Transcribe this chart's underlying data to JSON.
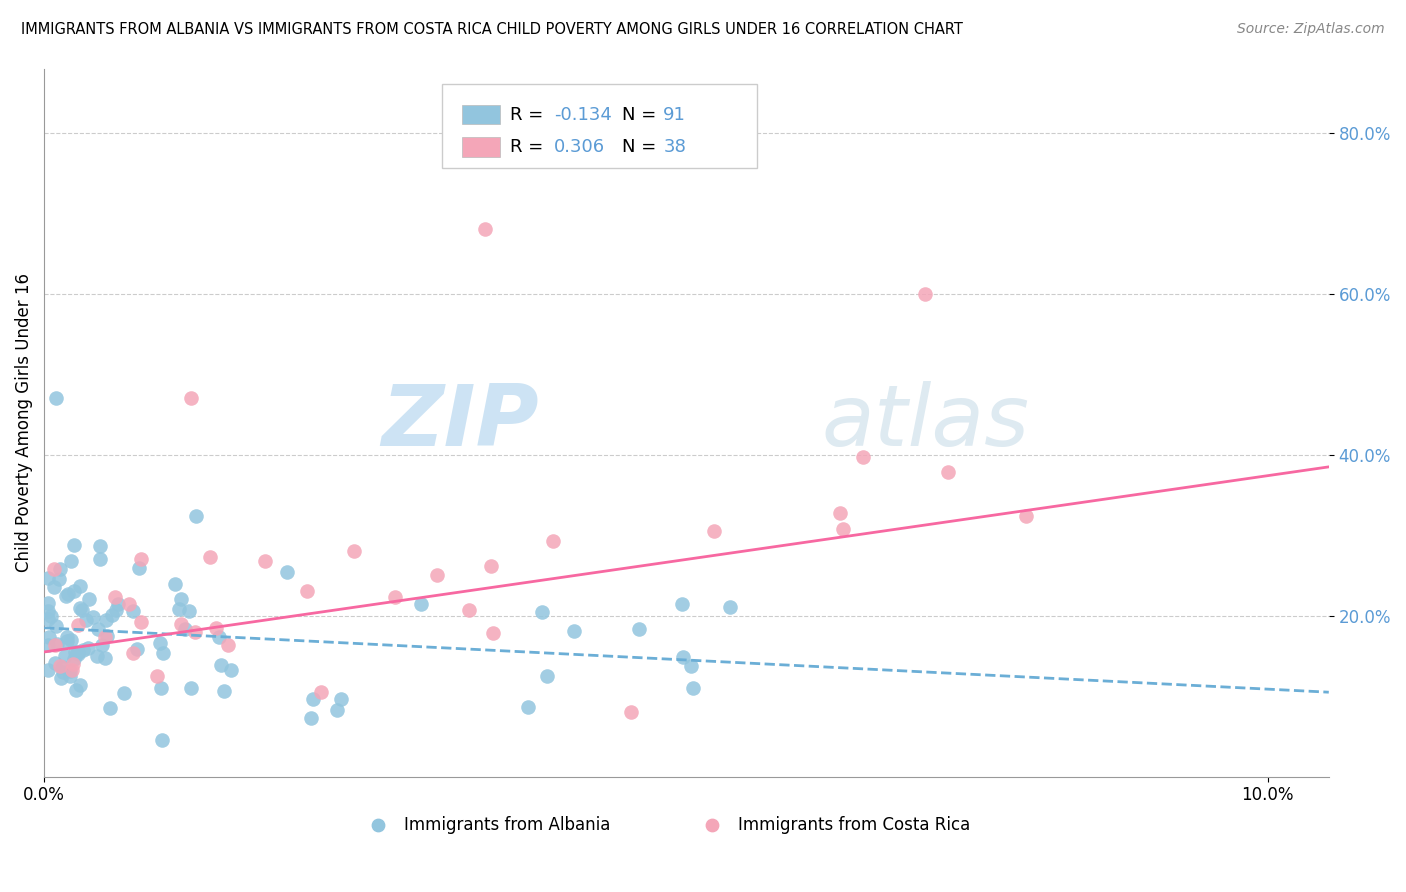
{
  "title": "IMMIGRANTS FROM ALBANIA VS IMMIGRANTS FROM COSTA RICA CHILD POVERTY AMONG GIRLS UNDER 16 CORRELATION CHART",
  "source": "Source: ZipAtlas.com",
  "ylabel": "Child Poverty Among Girls Under 16",
  "x_range": [
    0.0,
    0.105
  ],
  "y_range": [
    0.0,
    0.88
  ],
  "albania_R": -0.134,
  "albania_N": 91,
  "costarica_R": 0.306,
  "costarica_N": 38,
  "albania_color": "#92c5de",
  "costarica_color": "#f4a6b8",
  "albania_line_color": "#6baed6",
  "costarica_line_color": "#f768a1",
  "watermark_zip": "ZIP",
  "watermark_atlas": "atlas",
  "legend_label_albania": "Immigrants from Albania",
  "legend_label_costarica": "Immigrants from Costa Rica",
  "alb_line_x0": 0.0,
  "alb_line_x1": 0.105,
  "alb_line_y0": 0.185,
  "alb_line_y1": 0.105,
  "cr_line_x0": 0.0,
  "cr_line_x1": 0.105,
  "cr_line_y0": 0.155,
  "cr_line_y1": 0.385,
  "ytick_vals": [
    0.2,
    0.4,
    0.6,
    0.8
  ],
  "ytick_labels": [
    "20.0%",
    "40.0%",
    "60.0%",
    "80.0%"
  ]
}
